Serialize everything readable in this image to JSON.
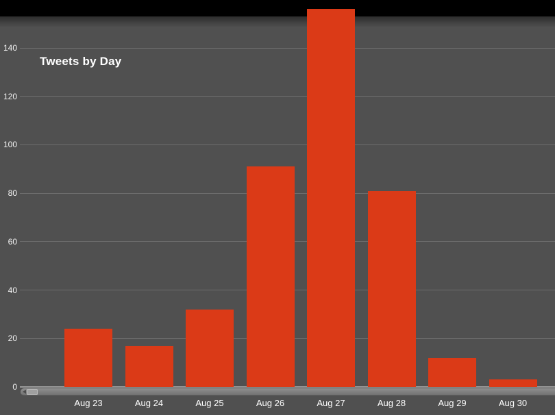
{
  "chart_data": {
    "type": "bar",
    "title": "Tweets by Day",
    "categories": [
      "Aug 23",
      "Aug 24",
      "Aug 25",
      "Aug 26",
      "Aug 27",
      "Aug 28",
      "Aug 29",
      "Aug 30"
    ],
    "values": [
      24,
      17,
      32,
      91,
      156,
      81,
      12,
      3
    ],
    "xlabel": "",
    "ylabel": "",
    "ylim": [
      0,
      160
    ],
    "yticks": [
      0,
      20,
      40,
      60,
      80,
      100,
      120,
      140
    ],
    "grid": true,
    "legend": "none",
    "colors": {
      "bar": "#db3a17",
      "background": "#505050",
      "gridline": "#6e6e6e",
      "axis_label": "#ffffff",
      "title": "#ffffff",
      "top_bar": "#000000"
    }
  }
}
